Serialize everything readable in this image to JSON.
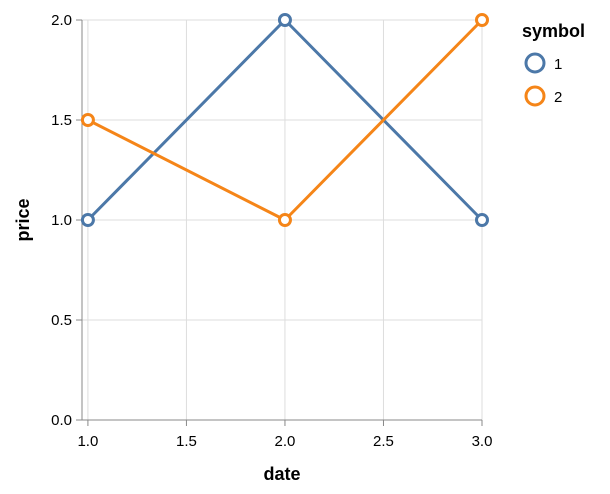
{
  "chart_data": {
    "type": "line",
    "x": [
      1.0,
      2.0,
      3.0
    ],
    "xlabel": "date",
    "ylabel": "price",
    "xlim": [
      0.97,
      3.0
    ],
    "ylim": [
      0.0,
      2.0
    ],
    "x_ticks": [
      "1.0",
      "1.5",
      "2.0",
      "2.5",
      "3.0"
    ],
    "y_ticks": [
      "0.0",
      "0.5",
      "1.0",
      "1.5",
      "2.0"
    ],
    "grid": true,
    "markers": "open-circle",
    "legend": {
      "title": "symbol",
      "position": "right"
    },
    "series": [
      {
        "name": "1",
        "color": "#4c78a8",
        "values": [
          1.0,
          2.0,
          1.0
        ]
      },
      {
        "name": "2",
        "color": "#f58518",
        "values": [
          1.5,
          1.0,
          2.0
        ]
      }
    ]
  }
}
